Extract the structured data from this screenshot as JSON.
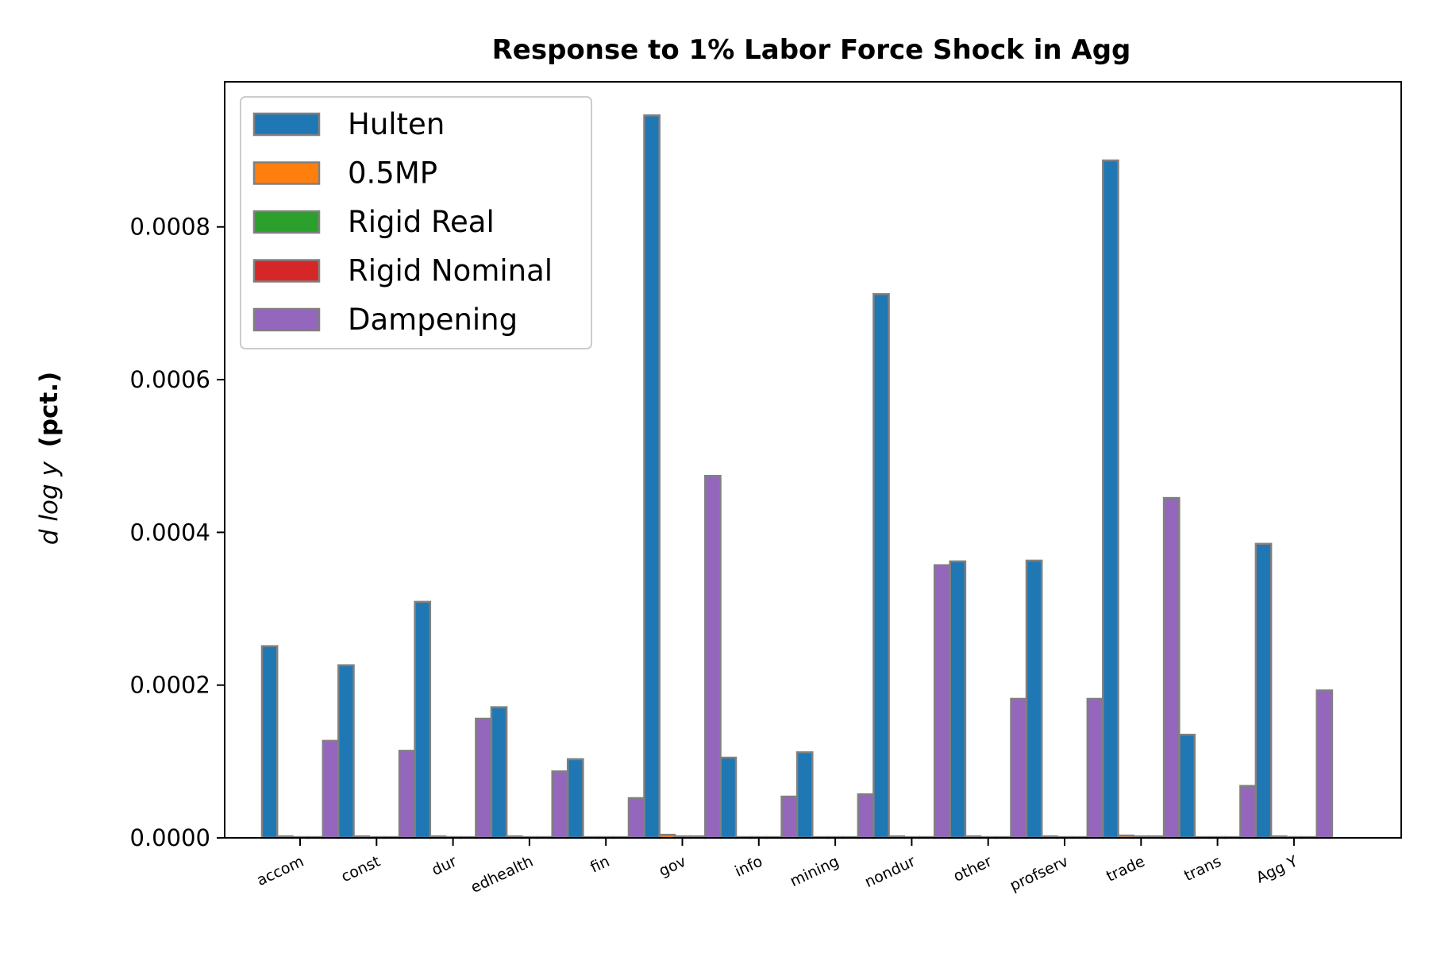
{
  "chart_data": {
    "type": "bar",
    "title": "Response to 1% Labor Force Shock in Agg",
    "ylabel_italic": "d log y",
    "ylabel_bold": "(pct.)",
    "xlabel": "",
    "ylim": [
      0,
      0.00099
    ],
    "yticks": [
      "0.0000",
      "0.0002",
      "0.0004",
      "0.0006",
      "0.0008"
    ],
    "ytick_values": [
      0,
      0.0002,
      0.0004,
      0.0006,
      0.0008
    ],
    "grid": false,
    "legend_position": "top-left",
    "bar_edge_color": "#808080",
    "categories": [
      "accom",
      "const",
      "dur",
      "edhealth",
      "fin",
      "gov",
      "info",
      "mining",
      "nondur",
      "other",
      "profserv",
      "trade",
      "trans",
      "Agg Y"
    ],
    "series": [
      {
        "name": "Hulten",
        "color": "#1f77b4",
        "values": [
          0.000251,
          0.000226,
          0.000309,
          0.000171,
          0.000103,
          0.000946,
          0.000105,
          0.000112,
          0.000712,
          0.000362,
          0.000363,
          0.000887,
          0.000135,
          0.000385
        ]
      },
      {
        "name": "0.5MP",
        "color": "#ff7f0e",
        "values": [
          2e-06,
          2e-06,
          2e-06,
          2e-06,
          1e-06,
          4e-06,
          1e-06,
          1e-06,
          2e-06,
          2e-06,
          2e-06,
          3e-06,
          1e-06,
          2e-06
        ]
      },
      {
        "name": "Rigid Real",
        "color": "#2ca02c",
        "values": [
          1e-06,
          1e-06,
          1e-06,
          1e-06,
          1e-06,
          2e-06,
          1e-06,
          1e-06,
          1e-06,
          1e-06,
          1e-06,
          2e-06,
          1e-06,
          1e-06
        ]
      },
      {
        "name": "Rigid Nominal",
        "color": "#d62728",
        "values": [
          1e-06,
          1e-06,
          1e-06,
          1e-06,
          1e-06,
          2e-06,
          1e-06,
          1e-06,
          1e-06,
          1e-06,
          1e-06,
          2e-06,
          1e-06,
          1e-06
        ]
      },
      {
        "name": "Dampening",
        "color": "#9467bd",
        "values": [
          0.000127,
          0.000114,
          0.000156,
          8.7e-05,
          5.2e-05,
          0.000474,
          5.4e-05,
          5.7e-05,
          0.000357,
          0.000182,
          0.000182,
          0.000445,
          6.8e-05,
          0.000193
        ]
      }
    ]
  }
}
